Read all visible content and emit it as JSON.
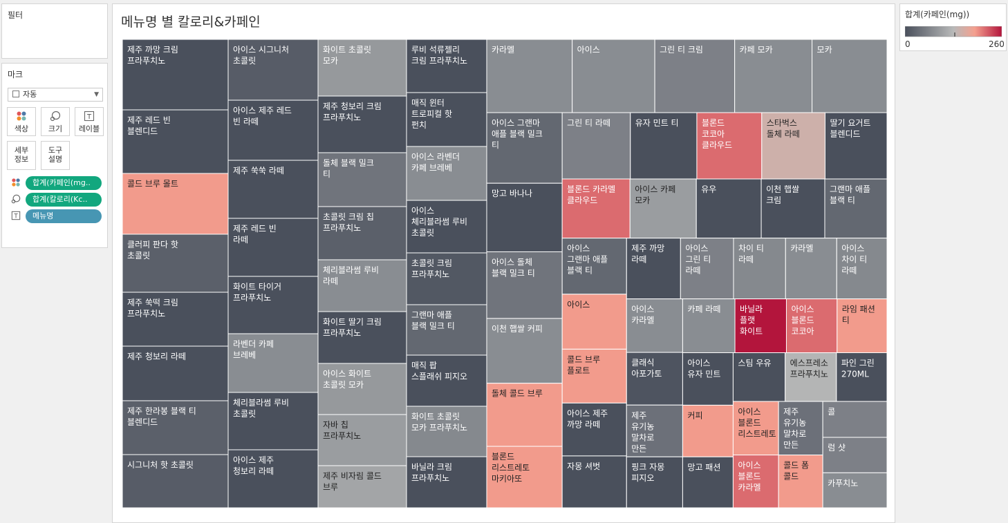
{
  "filters": {
    "title": "필터"
  },
  "marks": {
    "title": "마크",
    "mark_type": "자동",
    "buttons": [
      {
        "id": "color",
        "label": "색상"
      },
      {
        "id": "size",
        "label": "크기"
      },
      {
        "id": "label",
        "label": "레이블"
      },
      {
        "id": "detail",
        "label": "세부\n정보"
      },
      {
        "id": "tooltip",
        "label": "도구\n설명"
      }
    ],
    "pills": [
      {
        "icon": "color-dots-icon",
        "label": "합계(카페인(mg..",
        "style": "green"
      },
      {
        "icon": "size-icon",
        "label": "합계(칼로리(Kc..",
        "style": "green"
      },
      {
        "icon": "text-label-icon",
        "label": "메뉴명",
        "style": "blue"
      }
    ]
  },
  "legend": {
    "title": "합계(카페인(mg))",
    "min_label": "0",
    "max_label": "260",
    "colors": {
      "low": "#4a505c",
      "mid": "#b8b9b9",
      "high": "#b3153c"
    }
  },
  "chart_data": {
    "type": "treemap",
    "title": "메뉴명 별 칼로리&카페인",
    "size_measure": "합계(칼로리(Kcal))",
    "color_measure": "합계(카페인(mg))",
    "color_range": [
      0,
      260
    ],
    "columns": [
      {
        "width": 153,
        "items": [
          {
            "name": "제주 까망 크림 프라푸치노",
            "caffeine": 0,
            "h": 102
          },
          {
            "name": "제주 레드 빈 블렌디드",
            "caffeine": 0,
            "h": 92
          },
          {
            "name": "콜드 브루 몰트",
            "caffeine": 190,
            "h": 88
          },
          {
            "name": "클러피 판다 핫 초콜릿",
            "caffeine": 20,
            "h": 84
          },
          {
            "name": "제주 쑥떡 크림 프라푸치노",
            "caffeine": 0,
            "h": 78
          },
          {
            "name": "제주 청보리 라떼",
            "caffeine": 0,
            "h": 79
          },
          {
            "name": "제주 한라봉 블랙 티 블렌디드",
            "caffeine": 20,
            "h": 78
          },
          {
            "name": "시그니처 핫 초콜릿",
            "caffeine": 15,
            "h": 77
          }
        ]
      },
      {
        "width": 130,
        "items": [
          {
            "name": "아이스 시그니처 초콜릿",
            "caffeine": 15,
            "h": 88
          },
          {
            "name": "아이스 제주 레드 빈 라떼",
            "caffeine": 0,
            "h": 87
          },
          {
            "name": "제주 쑥쑥 라떼",
            "caffeine": 0,
            "h": 84
          },
          {
            "name": "제주 레드 빈 라떼",
            "caffeine": 0,
            "h": 84
          },
          {
            "name": "화이트 타이거 프라푸치노",
            "caffeine": 0,
            "h": 83
          },
          {
            "name": "라벤더 카페 브레베",
            "caffeine": 75,
            "h": 85
          },
          {
            "name": "체리블라썸 루비 초콜릿",
            "caffeine": 0,
            "h": 83
          },
          {
            "name": "아이스 제주 청보리 라떼",
            "caffeine": 0,
            "h": 84
          }
        ]
      },
      {
        "width": 128,
        "items": [
          {
            "name": "화이트 초콜릿 모카",
            "caffeine": 90,
            "h": 82
          },
          {
            "name": "제주 청보리 크림 프라푸치노",
            "caffeine": 0,
            "h": 82
          },
          {
            "name": "돌체 블랙 밀크 티",
            "caffeine": 45,
            "h": 78
          },
          {
            "name": "초콜릿 크림 칩 프라푸치노",
            "caffeine": 20,
            "h": 77
          },
          {
            "name": "체리블라썸 루비 라떼",
            "caffeine": 75,
            "h": 75
          },
          {
            "name": "화이트 딸기 크림 프라푸치노",
            "caffeine": 0,
            "h": 75
          },
          {
            "name": "아이스 화이트 초콜릿 모카",
            "caffeine": 90,
            "h": 74
          },
          {
            "name": "자바 칩 프라푸치노",
            "caffeine": 95,
            "h": 74
          },
          {
            "name": "제주 비자림 콜드 브루",
            "caffeine": 105,
            "h": 61
          }
        ]
      },
      {
        "width": 116,
        "items": [
          {
            "name": "루비 석류젤리 크림 프라푸치노",
            "caffeine": 0,
            "h": 77
          },
          {
            "name": "매직 윈터 트로피컬 핫 펀치",
            "caffeine": 0,
            "h": 78
          },
          {
            "name": "아이스 라벤더 카페 브레베",
            "caffeine": 75,
            "h": 78
          },
          {
            "name": "아이스 체리블라썸 루비 초콜릿",
            "caffeine": 0,
            "h": 76
          },
          {
            "name": "초콜릿 크림 프라푸치노",
            "caffeine": 10,
            "h": 75
          },
          {
            "name": "그랜마 애플 블랙 밀크 티",
            "caffeine": 30,
            "h": 73
          },
          {
            "name": "매직 팝 스플래쉬 피지오",
            "caffeine": 0,
            "h": 74
          },
          {
            "name": "화이트 초콜릿 모카 프라푸치노",
            "caffeine": 70,
            "h": 73
          },
          {
            "name": "바닐라 크림 프라푸치노",
            "caffeine": 0,
            "h": 74
          }
        ]
      }
    ],
    "rest_blocks": [
      {
        "name": "카라멜",
        "caffeine": 75
      },
      {
        "name": "아이스",
        "caffeine": 75
      },
      {
        "name": "그린 티 크림",
        "caffeine": 60
      },
      {
        "name": "카페 모카",
        "caffeine": 75
      },
      {
        "name": "모카",
        "caffeine": 75
      },
      {
        "name": "아이스 그랜마 애플 블랙 밀크 티",
        "caffeine": 30
      },
      {
        "name": "망고 바나나",
        "caffeine": 0
      },
      {
        "name": "아이스 돌체 블랙 밀크 티",
        "caffeine": 45
      },
      {
        "name": "이천 햅쌀 커피",
        "caffeine": 75
      },
      {
        "name": "돌체 콜드 브루",
        "caffeine": 190
      },
      {
        "name": "블론드 리스트레토 마키아또",
        "caffeine": 190
      },
      {
        "name": "그린 티 라떼",
        "caffeine": 60
      },
      {
        "name": "유자 민트 티",
        "caffeine": 0
      },
      {
        "name": "블론드 코코아 클라우드",
        "caffeine": 215
      },
      {
        "name": "스타벅스 돌체 라떼",
        "caffeine": 150
      },
      {
        "name": "딸기 요거트 블렌디드",
        "caffeine": 0
      },
      {
        "name": "블론드 카라멜 클라우드",
        "caffeine": 215
      },
      {
        "name": "아이스 카페 모카",
        "caffeine": 95
      },
      {
        "name": "유우",
        "caffeine": 0
      },
      {
        "name": "이천 햅쌀 크림",
        "caffeine": 0
      },
      {
        "name": "그랜마 애플 블랙 티",
        "caffeine": 30
      },
      {
        "name": "아이스 그랜마 애플 블랙 티",
        "caffeine": 30
      },
      {
        "name": "아이스",
        "caffeine": 190
      },
      {
        "name": "콜드 브루 플로트",
        "caffeine": 190
      },
      {
        "name": "아이스 제주 까망 라떼",
        "caffeine": 0
      },
      {
        "name": "자몽 셔벗",
        "caffeine": 0
      },
      {
        "name": "제주 까망 라떼",
        "caffeine": 0
      },
      {
        "name": "아이스 그린 티 라떼",
        "caffeine": 60
      },
      {
        "name": "차이 티 라떼",
        "caffeine": 70
      },
      {
        "name": "카라멜",
        "caffeine": 75
      },
      {
        "name": "아이스 차이 티 라떼",
        "caffeine": 70
      },
      {
        "name": "아이스 카라멜",
        "caffeine": 75
      },
      {
        "name": "클래식 아포가토",
        "caffeine": 5
      },
      {
        "name": "제주 유기농 말차로 만든",
        "caffeine": 40
      },
      {
        "name": "핑크 자몽 피지오",
        "caffeine": 0
      },
      {
        "name": "카페 라떼",
        "caffeine": 75
      },
      {
        "name": "바닐라 플랫 화이트",
        "caffeine": 260
      },
      {
        "name": "아이스 블론드 코코아",
        "caffeine": 215
      },
      {
        "name": "라임 패션 티",
        "caffeine": 190
      },
      {
        "name": "아이스 유자 민트",
        "caffeine": 0
      },
      {
        "name": "커피",
        "caffeine": 190
      },
      {
        "name": "망고 패션",
        "caffeine": 0
      },
      {
        "name": "스팀 우유",
        "caffeine": 0
      },
      {
        "name": "에스프레소 프라푸치노",
        "caffeine": 125
      },
      {
        "name": "파인 그린 270ML",
        "caffeine": 0
      },
      {
        "name": "아이스 블론드 리스트레토",
        "caffeine": 190
      },
      {
        "name": "아이스 블론드 카라멜",
        "caffeine": 215
      },
      {
        "name": "제주 유기농 말차로 만든",
        "caffeine": 40
      },
      {
        "name": "콜드 폼 콜드",
        "caffeine": 190
      },
      {
        "name": "콜",
        "caffeine": 60
      },
      {
        "name": "럼 샷",
        "caffeine": 60
      },
      {
        "name": "카푸치노",
        "caffeine": 75
      }
    ]
  }
}
